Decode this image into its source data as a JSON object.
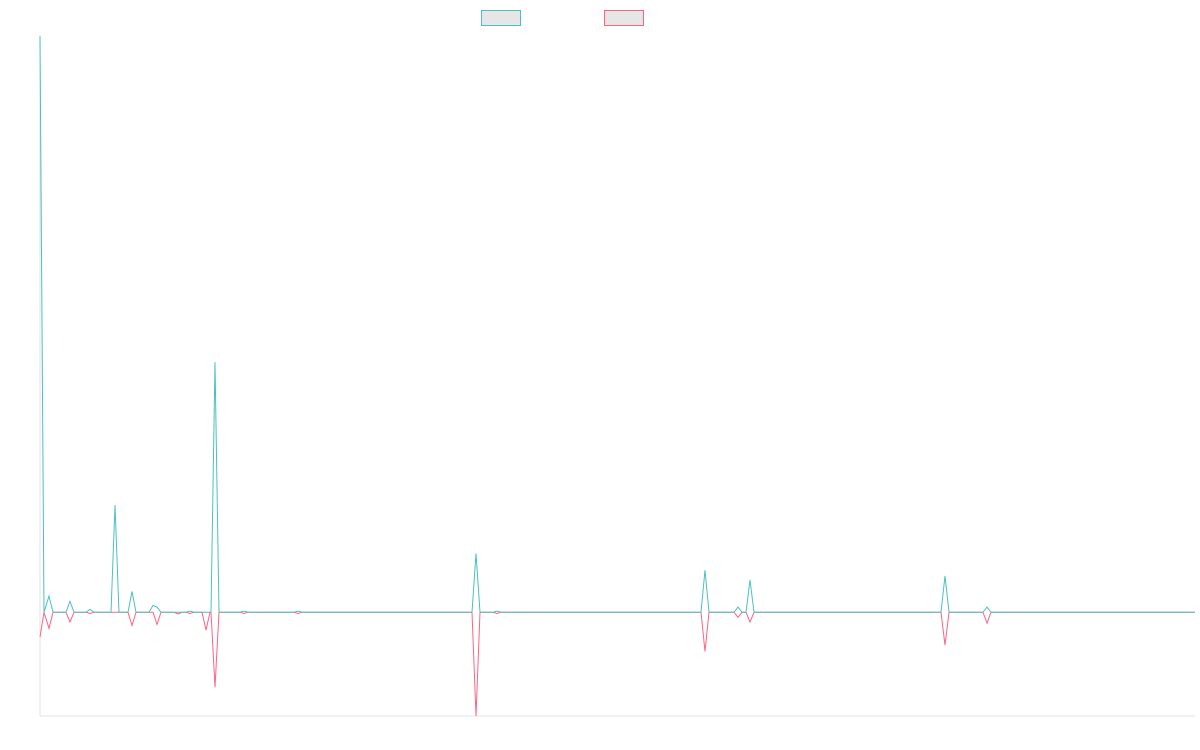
{
  "chart_data": {
    "type": "line",
    "x": [
      0,
      4,
      9,
      13,
      26,
      30,
      34,
      46,
      50,
      54,
      71,
      75,
      79,
      88,
      92,
      96,
      109,
      113,
      117,
      121,
      134,
      138,
      142,
      146,
      150,
      154,
      162,
      166,
      170,
      171,
      175,
      179,
      200,
      204,
      208,
      254,
      258,
      262,
      432,
      436,
      440,
      453,
      457,
      461,
      661,
      665,
      669,
      694,
      698,
      702,
      706,
      710,
      714,
      901,
      905,
      909,
      943,
      947,
      951,
      1155
    ],
    "series": [
      {
        "color": "#4bc0c0",
        "values": [
          100,
          0,
          2.8,
          0,
          0,
          1.9,
          0,
          0,
          0.5,
          0,
          0,
          18.6,
          0,
          0,
          3.6,
          0,
          0,
          1.2,
          0.9,
          0,
          0,
          0,
          0,
          0,
          0.2,
          0,
          0,
          0,
          0,
          0,
          43.4,
          0,
          0,
          0.2,
          0,
          0,
          0.2,
          0,
          0,
          10.2,
          0,
          0,
          0.2,
          0,
          0,
          7.3,
          0,
          0,
          0.9,
          0,
          0,
          5.6,
          0,
          0,
          6.3,
          0,
          0,
          0.9,
          0,
          0
        ]
      },
      {
        "color": "#ff6384",
        "values": [
          -4.3,
          0,
          -2.8,
          0,
          0,
          -1.7,
          0,
          0,
          -0.2,
          0,
          0,
          0,
          0,
          0,
          -2.3,
          0,
          0,
          0,
          -2.1,
          0,
          0,
          -0.3,
          0,
          0,
          -0.2,
          0,
          0,
          -3.1,
          0,
          0,
          -13,
          0,
          0,
          -0.2,
          0,
          0,
          -0.2,
          0,
          0,
          -18,
          0,
          0,
          -0.2,
          0,
          0,
          -6.8,
          0,
          0,
          -0.9,
          0,
          0,
          -1.7,
          0,
          0,
          -5.7,
          0,
          0,
          -1.9,
          0,
          0
        ]
      }
    ],
    "xlim": [
      0,
      1155
    ],
    "ylim": [
      -18,
      100
    ],
    "legend": "top"
  }
}
